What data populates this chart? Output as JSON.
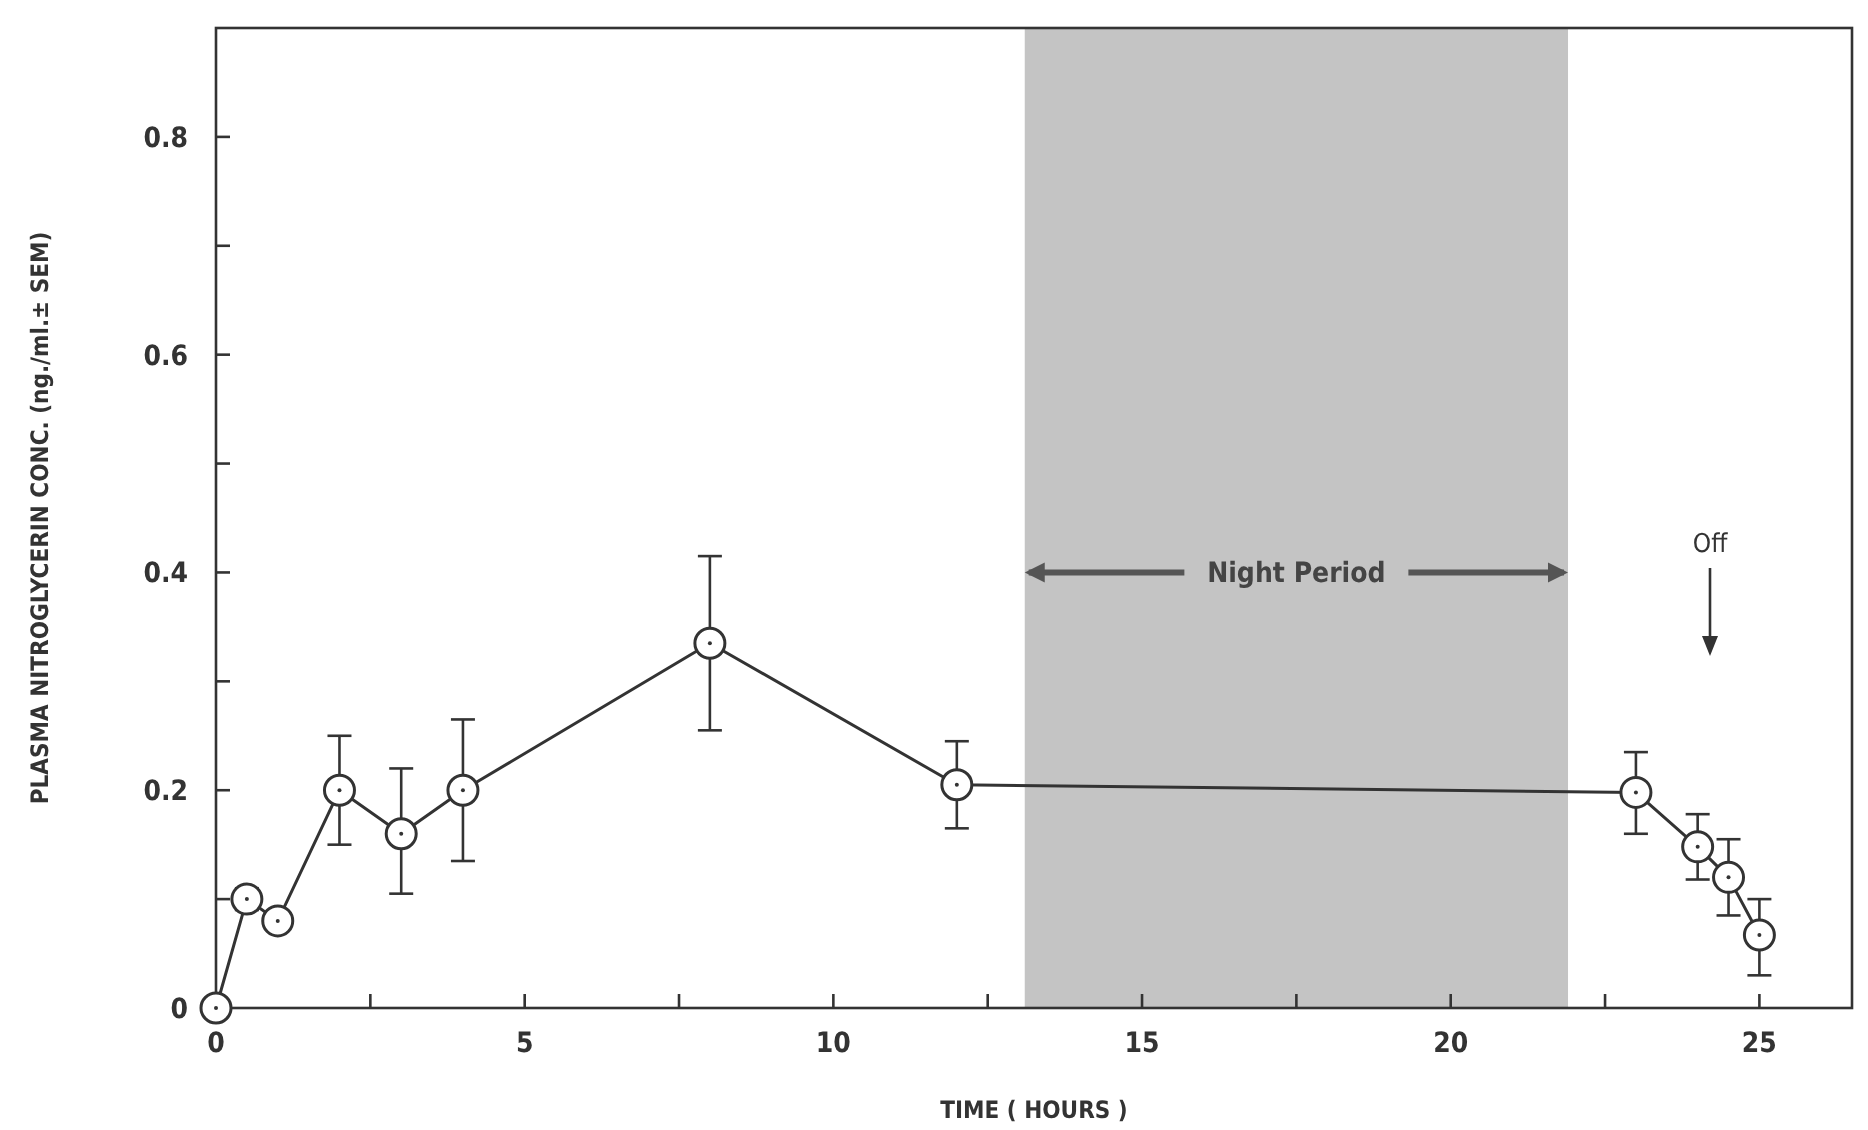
{
  "chart_data": {
    "type": "line",
    "xlabel": "TIME ( HOURS )",
    "ylabel": "PLASMA NITROGLYCERIN CONC. (ng./ml.± SEM)",
    "x": [
      0,
      0.5,
      1,
      2,
      3,
      4,
      8,
      12,
      23,
      24,
      24.5,
      25
    ],
    "series": [
      {
        "color": "#333333",
        "values": [
          0,
          0.1,
          0.08,
          0.2,
          0.16,
          0.2,
          0.335,
          0.205,
          0.198,
          0.148,
          0.12,
          0.067
        ],
        "errors": [
          null,
          [
            0.09,
            0.11
          ],
          null,
          [
            0.15,
            0.25
          ],
          [
            0.105,
            0.22
          ],
          [
            0.135,
            0.265
          ],
          [
            0.255,
            0.415
          ],
          [
            0.165,
            0.245
          ],
          [
            0.16,
            0.235
          ],
          [
            0.118,
            0.178
          ],
          [
            0.085,
            0.155
          ],
          [
            0.03,
            0.1
          ]
        ]
      }
    ],
    "xlim": [
      0,
      26.5
    ],
    "ylim": [
      0,
      0.9
    ],
    "xticks": [
      0,
      {
        "value": 2.5,
        "label": null
      },
      5,
      {
        "value": 7.5,
        "label": null
      },
      10,
      {
        "value": 12.5,
        "label": null
      },
      15,
      {
        "value": 17.5,
        "label": null
      },
      20,
      {
        "value": 22.5,
        "label": null
      },
      25
    ],
    "yticks": [
      0,
      {
        "value": 0.1,
        "label": null
      },
      0.2,
      {
        "value": 0.3,
        "label": null
      },
      0.4,
      {
        "value": 0.5,
        "label": null
      },
      0.6,
      {
        "value": 0.7,
        "label": null
      },
      0.8
    ],
    "bands": [
      {
        "axis": "x",
        "from": 13.1,
        "to": 21.9,
        "label": "Night Period",
        "color": "#c4c4c4"
      }
    ],
    "annotations": [
      "Off"
    ],
    "marker": "circle",
    "line_style": "solid",
    "grid": false
  }
}
